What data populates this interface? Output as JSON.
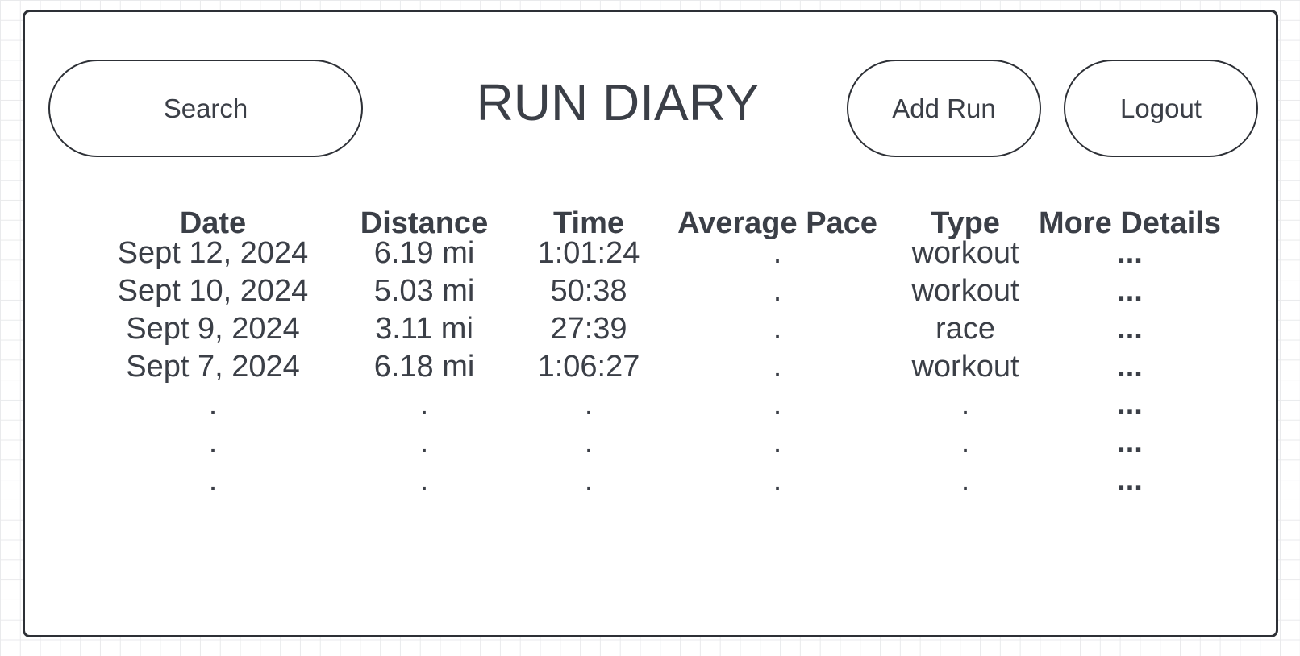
{
  "header": {
    "title": "RUN DIARY",
    "search_label": "Search",
    "add_run_label": "Add Run",
    "logout_label": "Logout"
  },
  "table": {
    "columns": [
      "Date",
      "Distance",
      "Time",
      "Average Pace",
      "Type",
      "More Details"
    ],
    "rows": [
      [
        "Sept 12, 2024",
        "6.19 mi",
        "1:01:24",
        ".",
        "workout",
        "..."
      ],
      [
        "Sept 10, 2024",
        "5.03 mi",
        "50:38",
        ".",
        "workout",
        "..."
      ],
      [
        "Sept 9, 2024",
        "3.11 mi",
        "27:39",
        ".",
        "race",
        "..."
      ],
      [
        "Sept 7, 2024",
        "6.18 mi",
        "1:06:27",
        ".",
        "workout",
        "..."
      ],
      [
        ".",
        ".",
        ".",
        ".",
        ".",
        "..."
      ],
      [
        ".",
        ".",
        ".",
        ".",
        ".",
        "..."
      ],
      [
        ".",
        ".",
        ".",
        ".",
        ".",
        "..."
      ]
    ]
  }
}
